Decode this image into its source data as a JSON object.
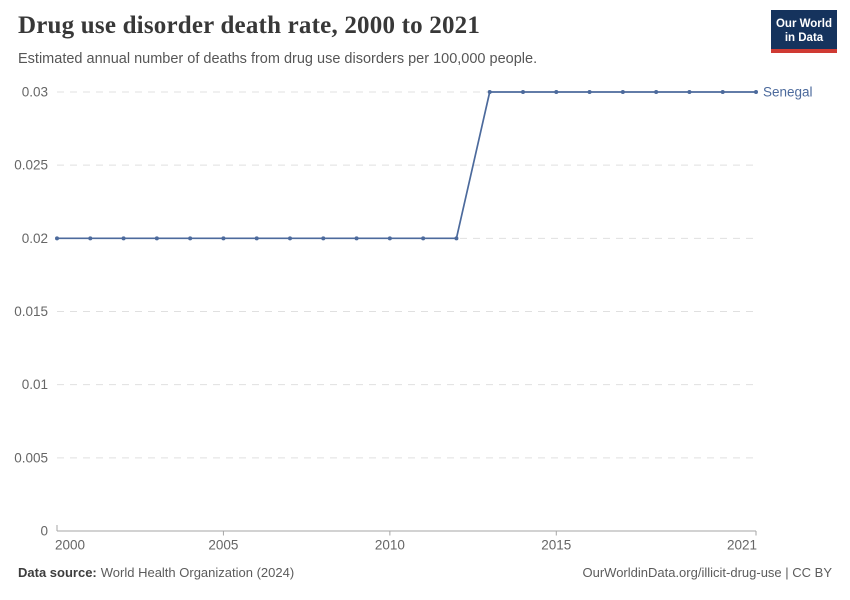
{
  "header": {
    "title": "Drug use disorder death rate, 2000 to 2021",
    "subtitle": "Estimated annual number of deaths from drug use disorders per 100,000 people.",
    "logo": {
      "line1": "Our World",
      "line2": "in Data",
      "bg_color": "#15335d",
      "bar_color": "#cf3a33"
    }
  },
  "chart_data": {
    "type": "line",
    "title": "Drug use disorder death rate, 2000 to 2021",
    "xlabel": "",
    "ylabel": "",
    "xlim": [
      2000,
      2021
    ],
    "ylim": [
      0,
      0.03
    ],
    "grid": true,
    "legend_position": "end-of-line",
    "x": [
      2000,
      2001,
      2002,
      2003,
      2004,
      2005,
      2006,
      2007,
      2008,
      2009,
      2010,
      2011,
      2012,
      2013,
      2014,
      2015,
      2016,
      2017,
      2018,
      2019,
      2020,
      2021
    ],
    "series": [
      {
        "name": "Senegal",
        "color": "#4c6a9c",
        "values": [
          0.02,
          0.02,
          0.02,
          0.02,
          0.02,
          0.02,
          0.02,
          0.02,
          0.02,
          0.02,
          0.02,
          0.02,
          0.02,
          0.03,
          0.03,
          0.03,
          0.03,
          0.03,
          0.03,
          0.03,
          0.03,
          0.03
        ]
      }
    ],
    "x_ticks": [
      {
        "value": 2000,
        "label": "2000"
      },
      {
        "value": 2005,
        "label": "2005"
      },
      {
        "value": 2010,
        "label": "2010"
      },
      {
        "value": 2015,
        "label": "2015"
      },
      {
        "value": 2021,
        "label": "2021"
      }
    ],
    "y_ticks": [
      {
        "value": 0,
        "label": "0"
      },
      {
        "value": 0.005,
        "label": "0.005"
      },
      {
        "value": 0.01,
        "label": "0.01"
      },
      {
        "value": 0.015,
        "label": "0.015"
      },
      {
        "value": 0.02,
        "label": "0.02"
      },
      {
        "value": 0.025,
        "label": "0.025"
      },
      {
        "value": 0.03,
        "label": "0.03"
      }
    ]
  },
  "footer": {
    "source_label": "Data source:",
    "source_value": "World Health Organization (2024)",
    "credit_url": "OurWorldinData.org/illicit-drug-use",
    "credit_suffix": " | CC BY"
  },
  "colors": {
    "line": "#4c6a9c",
    "grid": "#e0e0e0",
    "axis": "#a6a6a6",
    "tick_text": "#666666"
  }
}
